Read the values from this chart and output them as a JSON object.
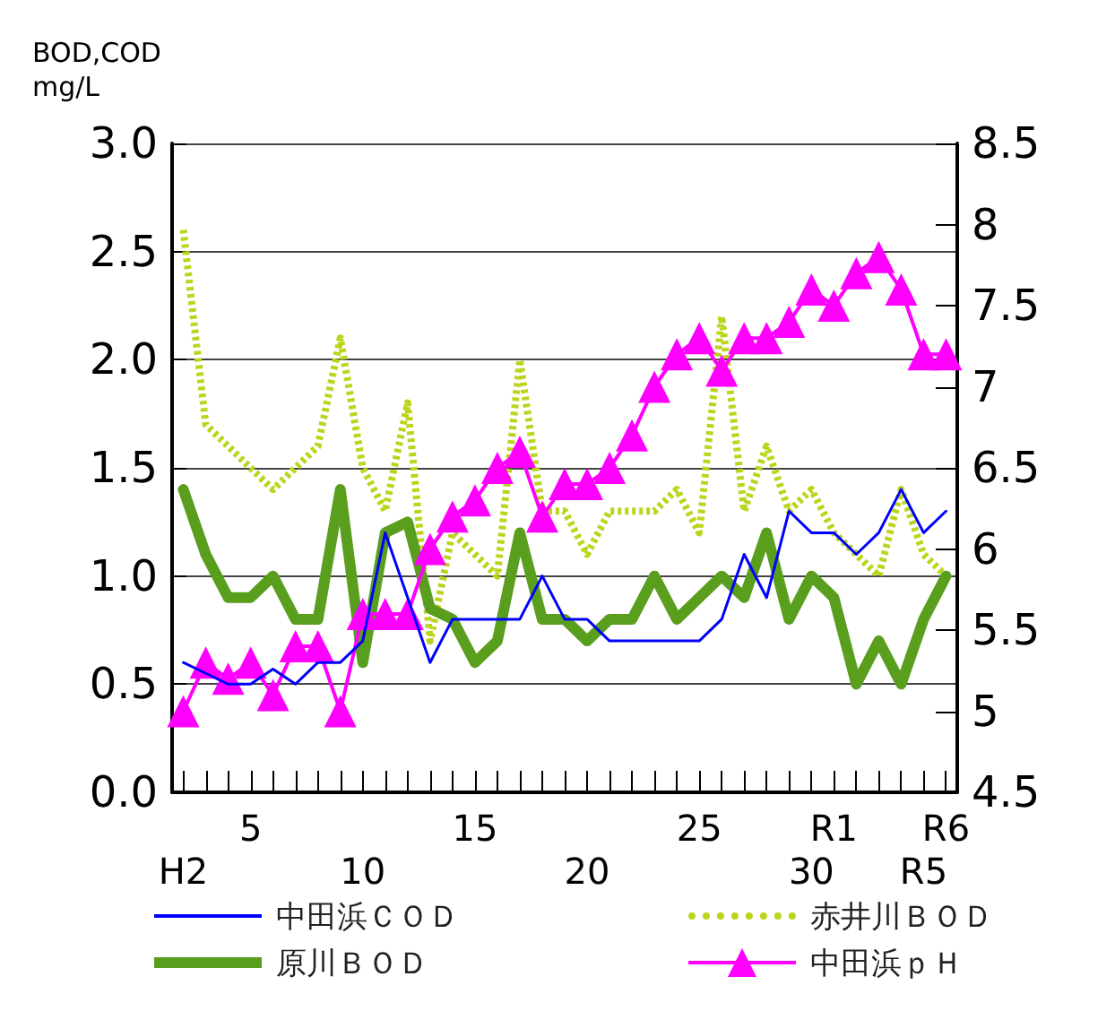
{
  "chart_data": {
    "type": "line",
    "ylabel": "BOD,COD\nmg/L",
    "categories": [
      "H2",
      null,
      null,
      "5",
      null,
      null,
      null,
      null,
      "10",
      null,
      null,
      null,
      null,
      "15",
      null,
      null,
      null,
      null,
      "20",
      null,
      null,
      null,
      null,
      "25",
      null,
      null,
      null,
      null,
      "30",
      "R1",
      null,
      null,
      null,
      "R5",
      "R6"
    ],
    "series": [
      {
        "name": "中田浜ＣＯＤ",
        "color": "#0000ff",
        "line_style": "solid",
        "marker": "none",
        "values": [
          0.6,
          0.55,
          0.5,
          0.5,
          0.57,
          0.5,
          0.6,
          0.6,
          0.7,
          1.2,
          0.9,
          0.6,
          0.8,
          0.8,
          0.8,
          0.8,
          1.0,
          0.8,
          0.8,
          0.7,
          0.7,
          0.7,
          0.7,
          0.7,
          0.8,
          1.1,
          0.9,
          1.3,
          1.2,
          1.2,
          1.1,
          1.2,
          1.4,
          1.2,
          1.3
        ]
      },
      {
        "name": "赤井川ＢＯＤ",
        "color": "#bcd41c",
        "line_style": "dotted",
        "marker": "none",
        "values": [
          2.6,
          1.7,
          1.6,
          1.5,
          1.4,
          1.5,
          1.6,
          2.1,
          1.5,
          1.3,
          1.8,
          0.7,
          1.2,
          1.1,
          1.0,
          2.0,
          1.3,
          1.3,
          1.1,
          1.3,
          1.3,
          1.3,
          1.4,
          1.2,
          2.2,
          1.3,
          1.6,
          1.3,
          1.4,
          1.2,
          1.1,
          1.0,
          1.4,
          1.1,
          1.0
        ]
      },
      {
        "name": "原川ＢＯＤ",
        "color": "#5a9e1e",
        "line_style": "solid",
        "marker": "none",
        "values": [
          1.4,
          1.1,
          0.9,
          0.9,
          1.0,
          0.8,
          0.8,
          1.4,
          0.6,
          1.2,
          1.25,
          0.85,
          0.8,
          0.6,
          0.7,
          1.2,
          0.8,
          0.8,
          0.7,
          0.8,
          0.8,
          1.0,
          0.8,
          0.9,
          1.0,
          0.9,
          1.2,
          0.8,
          1.0,
          0.9,
          0.5,
          0.7,
          0.5,
          0.8,
          1.0
        ]
      },
      {
        "name": "中田浜ｐＨ",
        "color": "#ff00ff",
        "line_style": "solid",
        "marker": "triangle",
        "axis": "y2",
        "values": [
          5.0,
          5.3,
          5.2,
          5.3,
          5.1,
          5.4,
          5.4,
          5.0,
          5.6,
          5.6,
          5.6,
          6.0,
          6.2,
          6.3,
          6.5,
          6.6,
          6.2,
          6.4,
          6.4,
          6.5,
          6.7,
          7.0,
          7.2,
          7.3,
          7.1,
          7.3,
          7.3,
          7.4,
          7.6,
          7.5,
          7.7,
          7.8,
          7.6,
          7.2,
          7.2
        ]
      }
    ],
    "ylim": [
      0,
      3
    ],
    "yticks": [
      {
        "value": 0,
        "label": "0.0"
      },
      0.5,
      {
        "value": 1,
        "label": "1.0"
      },
      1.5,
      {
        "value": 2,
        "label": "2.0"
      },
      2.5,
      {
        "value": 3,
        "label": "3.0"
      }
    ],
    "y2lim": [
      4.5,
      8.5
    ],
    "y2ticks": [
      4.5,
      5,
      5.5,
      6,
      6.5,
      7,
      7.5,
      8,
      8.5
    ],
    "grid": "y",
    "legend": "bottom"
  }
}
